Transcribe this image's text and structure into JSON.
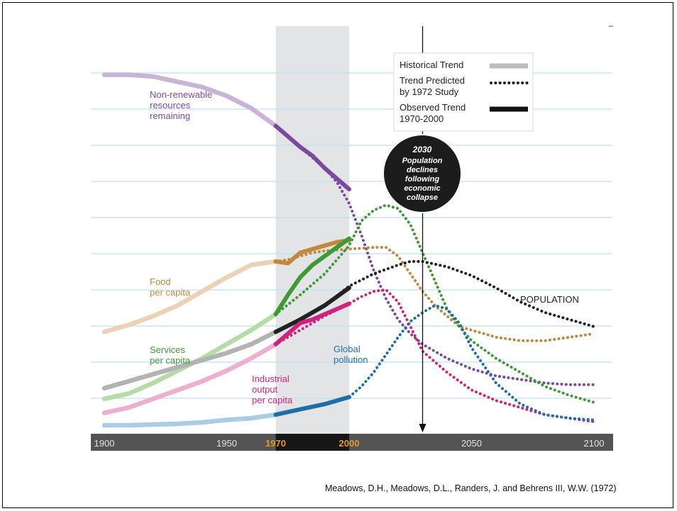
{
  "chart_data": {
    "type": "line",
    "x_axis": {
      "min": 1900,
      "max": 2100,
      "ticks": [
        {
          "value": 1900,
          "label": "1900",
          "highlight": false
        },
        {
          "value": 1950,
          "label": "1950",
          "highlight": false
        },
        {
          "value": 1970,
          "label": "1970",
          "highlight": true
        },
        {
          "value": 2000,
          "label": "2000",
          "highlight": true
        },
        {
          "value": 2050,
          "label": "2050",
          "highlight": false
        },
        {
          "value": 2100,
          "label": "2100",
          "highlight": false
        }
      ]
    },
    "y_range": [
      0,
      1
    ],
    "grid": "horizontal",
    "historical_band": [
      1970,
      2000
    ],
    "marker": {
      "year": 2030,
      "title": "2030",
      "text": [
        "Population",
        "declines",
        "following",
        "economic",
        "collapse"
      ]
    },
    "legend": {
      "placement": "top-right",
      "items": [
        {
          "label": [
            "Historical Trend"
          ],
          "style": "solid-grey"
        },
        {
          "label": [
            "Trend Predicted",
            "by 1972 Study"
          ],
          "style": "dotted"
        },
        {
          "label": [
            "Observed Trend",
            "1970-2000"
          ],
          "style": "solid-dark"
        }
      ]
    },
    "series": [
      {
        "name": "Non-renewable resources remaining",
        "label_lines": [
          "Non-renewable",
          "resources",
          "remaining"
        ],
        "color": "#7b4a9e",
        "hist_color": "#c9b3d9",
        "historical": [
          [
            1900,
            0.995
          ],
          [
            1910,
            0.995
          ],
          [
            1920,
            0.99
          ],
          [
            1930,
            0.975
          ],
          [
            1940,
            0.96
          ],
          [
            1950,
            0.935
          ],
          [
            1960,
            0.9
          ],
          [
            1970,
            0.85
          ]
        ],
        "observed": [
          [
            1970,
            0.85
          ],
          [
            1975,
            0.82
          ],
          [
            1980,
            0.79
          ],
          [
            1985,
            0.765
          ],
          [
            1990,
            0.73
          ],
          [
            1995,
            0.7
          ],
          [
            2000,
            0.67
          ]
        ],
        "predicted": [
          [
            1970,
            0.85
          ],
          [
            1975,
            0.82
          ],
          [
            1980,
            0.79
          ],
          [
            1985,
            0.76
          ],
          [
            1990,
            0.73
          ],
          [
            1995,
            0.69
          ],
          [
            2000,
            0.63
          ],
          [
            2005,
            0.54
          ],
          [
            2010,
            0.44
          ],
          [
            2015,
            0.36
          ],
          [
            2020,
            0.3
          ],
          [
            2025,
            0.26
          ],
          [
            2030,
            0.23
          ],
          [
            2040,
            0.19
          ],
          [
            2050,
            0.16
          ],
          [
            2060,
            0.14
          ],
          [
            2070,
            0.13
          ],
          [
            2080,
            0.12
          ],
          [
            2090,
            0.115
          ],
          [
            2100,
            0.115
          ]
        ]
      },
      {
        "name": "Food per capita",
        "label_lines": [
          "Food",
          "per capita"
        ],
        "color": "#c08a3e",
        "hist_color": "#ecd2b3",
        "historical": [
          [
            1900,
            0.265
          ],
          [
            1910,
            0.285
          ],
          [
            1920,
            0.31
          ],
          [
            1930,
            0.34
          ],
          [
            1940,
            0.38
          ],
          [
            1950,
            0.42
          ],
          [
            1960,
            0.455
          ],
          [
            1970,
            0.465
          ]
        ],
        "observed": [
          [
            1970,
            0.465
          ],
          [
            1975,
            0.46
          ],
          [
            1980,
            0.49
          ],
          [
            1985,
            0.5
          ],
          [
            1990,
            0.51
          ],
          [
            1995,
            0.52
          ],
          [
            2000,
            0.525
          ]
        ],
        "predicted": [
          [
            1970,
            0.465
          ],
          [
            1975,
            0.47
          ],
          [
            1980,
            0.48
          ],
          [
            1985,
            0.49
          ],
          [
            1990,
            0.495
          ],
          [
            2000,
            0.5
          ],
          [
            2010,
            0.505
          ],
          [
            2015,
            0.505
          ],
          [
            2020,
            0.48
          ],
          [
            2025,
            0.43
          ],
          [
            2030,
            0.38
          ],
          [
            2035,
            0.34
          ],
          [
            2040,
            0.31
          ],
          [
            2045,
            0.28
          ],
          [
            2050,
            0.27
          ],
          [
            2060,
            0.25
          ],
          [
            2070,
            0.24
          ],
          [
            2080,
            0.24
          ],
          [
            2090,
            0.25
          ],
          [
            2100,
            0.26
          ]
        ]
      },
      {
        "name": "Services per capita",
        "label_lines": [
          "Services",
          "per capita"
        ],
        "color": "#3f9a35",
        "hist_color": "#b5dca6",
        "historical": [
          [
            1900,
            0.075
          ],
          [
            1910,
            0.09
          ],
          [
            1920,
            0.12
          ],
          [
            1930,
            0.155
          ],
          [
            1940,
            0.19
          ],
          [
            1950,
            0.23
          ],
          [
            1960,
            0.27
          ],
          [
            1970,
            0.315
          ]
        ],
        "observed": [
          [
            1970,
            0.315
          ],
          [
            1975,
            0.37
          ],
          [
            1980,
            0.42
          ],
          [
            1985,
            0.455
          ],
          [
            1990,
            0.48
          ],
          [
            1995,
            0.505
          ],
          [
            2000,
            0.53
          ]
        ],
        "predicted": [
          [
            1970,
            0.315
          ],
          [
            1980,
            0.37
          ],
          [
            1990,
            0.43
          ],
          [
            2000,
            0.51
          ],
          [
            2005,
            0.58
          ],
          [
            2010,
            0.61
          ],
          [
            2015,
            0.625
          ],
          [
            2020,
            0.615
          ],
          [
            2025,
            0.57
          ],
          [
            2030,
            0.49
          ],
          [
            2035,
            0.41
          ],
          [
            2040,
            0.33
          ],
          [
            2045,
            0.28
          ],
          [
            2050,
            0.24
          ],
          [
            2060,
            0.19
          ],
          [
            2070,
            0.15
          ],
          [
            2080,
            0.11
          ],
          [
            2090,
            0.085
          ],
          [
            2100,
            0.065
          ]
        ]
      },
      {
        "name": "POPULATION",
        "label_lines": [
          "POPULATION"
        ],
        "color": "#222222",
        "hist_color": "#b3b3b3",
        "historical": [
          [
            1900,
            0.105
          ],
          [
            1910,
            0.125
          ],
          [
            1920,
            0.145
          ],
          [
            1930,
            0.165
          ],
          [
            1940,
            0.185
          ],
          [
            1950,
            0.205
          ],
          [
            1960,
            0.23
          ],
          [
            1970,
            0.265
          ]
        ],
        "observed": [
          [
            1970,
            0.265
          ],
          [
            1980,
            0.3
          ],
          [
            1990,
            0.34
          ],
          [
            2000,
            0.39
          ]
        ],
        "predicted": [
          [
            1970,
            0.265
          ],
          [
            1980,
            0.3
          ],
          [
            1990,
            0.34
          ],
          [
            2000,
            0.395
          ],
          [
            2010,
            0.43
          ],
          [
            2020,
            0.455
          ],
          [
            2025,
            0.465
          ],
          [
            2030,
            0.465
          ],
          [
            2040,
            0.45
          ],
          [
            2050,
            0.425
          ],
          [
            2060,
            0.39
          ],
          [
            2070,
            0.35
          ],
          [
            2080,
            0.32
          ],
          [
            2090,
            0.3
          ],
          [
            2100,
            0.28
          ]
        ]
      },
      {
        "name": "Industrial output per capita",
        "label_lines": [
          "Industrial",
          "output",
          "per capita"
        ],
        "color": "#d0237e",
        "hist_color": "#eeaed0",
        "historical": [
          [
            1900,
            0.035
          ],
          [
            1910,
            0.05
          ],
          [
            1920,
            0.075
          ],
          [
            1930,
            0.1
          ],
          [
            1940,
            0.125
          ],
          [
            1950,
            0.155
          ],
          [
            1960,
            0.19
          ],
          [
            1970,
            0.23
          ]
        ],
        "observed": [
          [
            1970,
            0.23
          ],
          [
            1975,
            0.26
          ],
          [
            1980,
            0.29
          ],
          [
            1985,
            0.3
          ],
          [
            1990,
            0.315
          ],
          [
            1995,
            0.33
          ],
          [
            2000,
            0.345
          ]
        ],
        "predicted": [
          [
            1970,
            0.23
          ],
          [
            1980,
            0.27
          ],
          [
            1990,
            0.31
          ],
          [
            2000,
            0.345
          ],
          [
            2005,
            0.365
          ],
          [
            2010,
            0.38
          ],
          [
            2015,
            0.385
          ],
          [
            2020,
            0.35
          ],
          [
            2025,
            0.28
          ],
          [
            2030,
            0.21
          ],
          [
            2040,
            0.15
          ],
          [
            2050,
            0.1
          ],
          [
            2060,
            0.07
          ],
          [
            2070,
            0.05
          ],
          [
            2080,
            0.03
          ],
          [
            2090,
            0.02
          ],
          [
            2100,
            0.01
          ]
        ]
      },
      {
        "name": "Global pollution",
        "label_lines": [
          "Global",
          "pollution"
        ],
        "color": "#1e6fa8",
        "hist_color": "#a9cde6",
        "historical": [
          [
            1900,
            0.0
          ],
          [
            1910,
            0.0
          ],
          [
            1920,
            0.002
          ],
          [
            1930,
            0.004
          ],
          [
            1940,
            0.008
          ],
          [
            1950,
            0.015
          ],
          [
            1960,
            0.02
          ],
          [
            1970,
            0.03
          ]
        ],
        "observed": [
          [
            1970,
            0.03
          ],
          [
            1980,
            0.045
          ],
          [
            1990,
            0.06
          ],
          [
            2000,
            0.08
          ]
        ],
        "predicted": [
          [
            1970,
            0.03
          ],
          [
            1980,
            0.045
          ],
          [
            1990,
            0.06
          ],
          [
            2000,
            0.08
          ],
          [
            2005,
            0.11
          ],
          [
            2010,
            0.15
          ],
          [
            2015,
            0.2
          ],
          [
            2020,
            0.25
          ],
          [
            2025,
            0.295
          ],
          [
            2030,
            0.32
          ],
          [
            2035,
            0.34
          ],
          [
            2040,
            0.33
          ],
          [
            2045,
            0.29
          ],
          [
            2050,
            0.22
          ],
          [
            2060,
            0.12
          ],
          [
            2070,
            0.06
          ],
          [
            2080,
            0.03
          ],
          [
            2090,
            0.02
          ],
          [
            2100,
            0.015
          ]
        ]
      }
    ]
  },
  "citation": "Meadows, D.H., Meadows, D.L., Randers, J. and Behrens III, W.W. (1972)"
}
